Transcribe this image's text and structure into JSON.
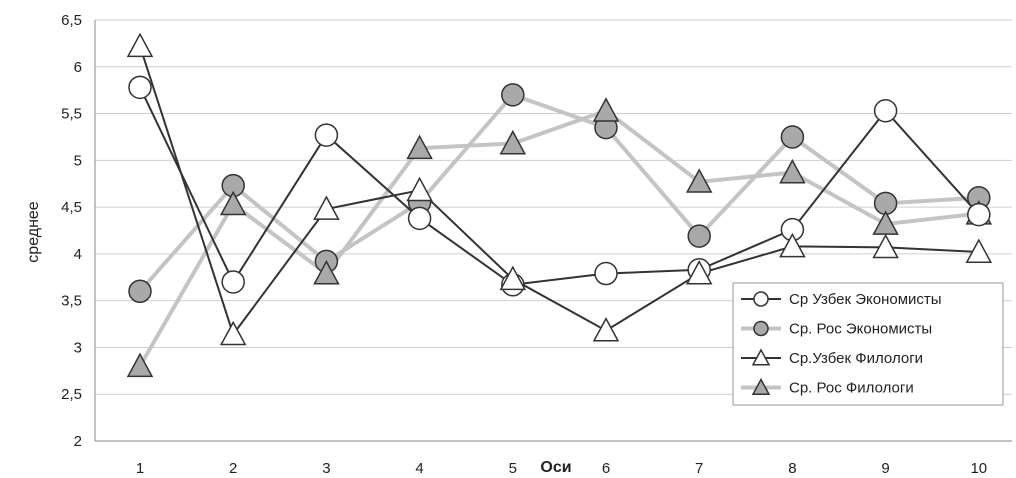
{
  "chart_data": {
    "type": "line",
    "xlabel": "Оси",
    "ylabel": "среднее",
    "categories": [
      "1",
      "2",
      "3",
      "4",
      "5",
      "6",
      "7",
      "8",
      "9",
      "10"
    ],
    "ylim": [
      2,
      6.5
    ],
    "yticks": [
      "2",
      "2,5",
      "3",
      "3,5",
      "4",
      "4,5",
      "5",
      "5,5",
      "6",
      "6,5"
    ],
    "grid": true,
    "legend_position": "bottom-right",
    "series": [
      {
        "name": "Ср Узбек Экономисты",
        "marker": "circle",
        "line_color": "#333333",
        "marker_fill": "#ffffff",
        "values": [
          5.78,
          3.7,
          5.27,
          4.38,
          3.67,
          3.79,
          3.83,
          4.26,
          5.53,
          4.42
        ]
      },
      {
        "name": "Ср. Рос Экономисты",
        "marker": "circle",
        "line_color": "#c4c4c4",
        "marker_fill": "#a9a9a9",
        "values": [
          3.6,
          4.73,
          3.92,
          4.55,
          5.7,
          5.35,
          4.19,
          5.25,
          4.54,
          4.6
        ]
      },
      {
        "name": "Ср.Узбек Филологи",
        "marker": "triangle",
        "line_color": "#333333",
        "marker_fill": "#ffffff",
        "values": [
          6.22,
          3.14,
          4.48,
          4.68,
          3.73,
          3.18,
          3.79,
          4.08,
          4.07,
          4.02
        ]
      },
      {
        "name": "Ср. Рос Филологи",
        "marker": "triangle",
        "line_color": "#c4c4c4",
        "marker_fill": "#a9a9a9",
        "values": [
          2.8,
          4.53,
          3.79,
          5.13,
          5.18,
          5.53,
          4.77,
          4.87,
          4.32,
          4.43
        ]
      }
    ]
  }
}
